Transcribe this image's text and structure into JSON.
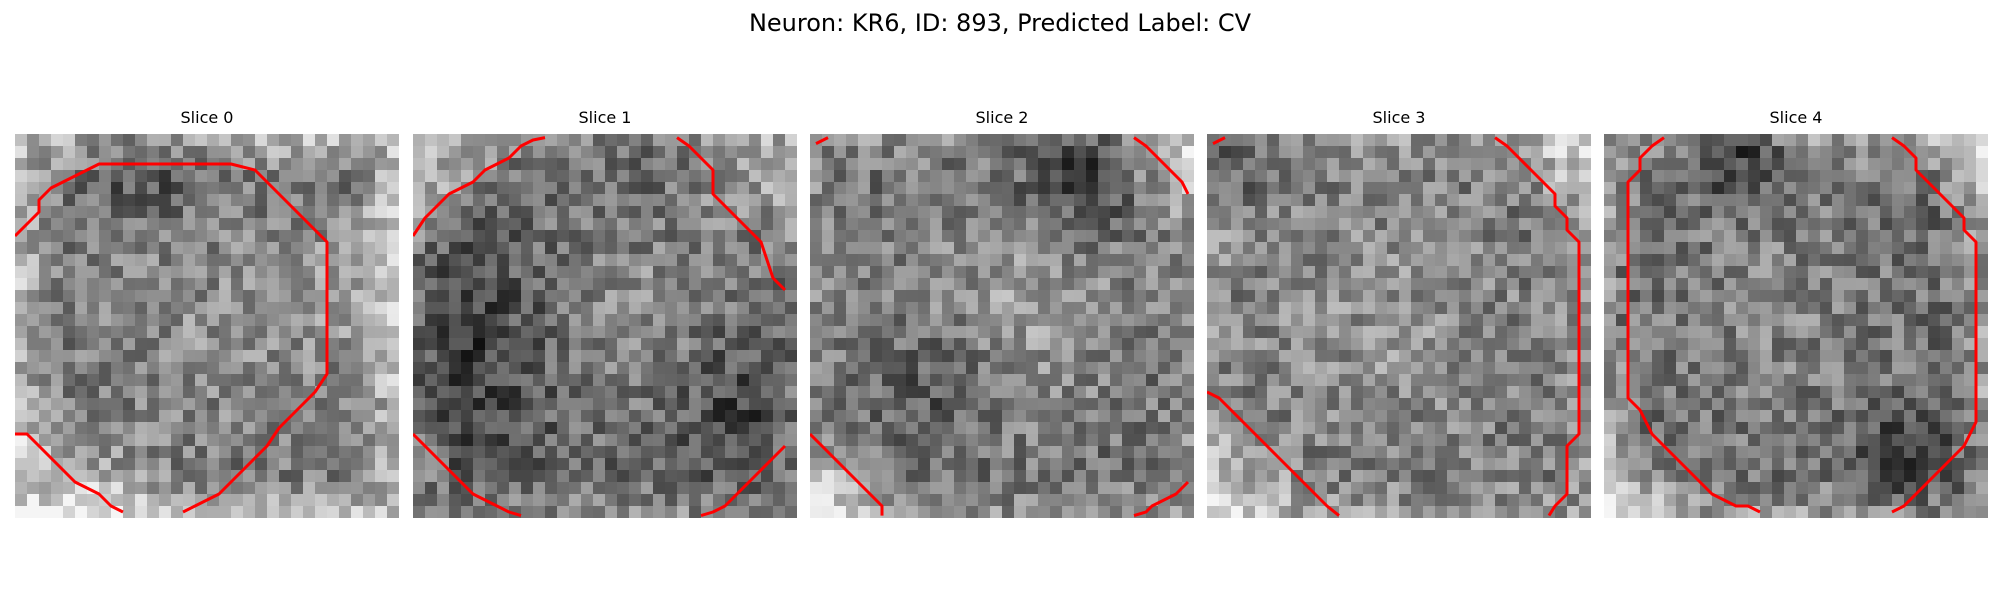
{
  "figure": {
    "title": "Neuron: KR6, ID: 893, Predicted Label: CV"
  },
  "colors": {
    "contour": "#ff0000",
    "background": "#ffffff"
  },
  "slices": [
    {
      "label": "Slice 0"
    },
    {
      "label": "Slice 1"
    },
    {
      "label": "Slice 2"
    },
    {
      "label": "Slice 3"
    },
    {
      "label": "Slice 4"
    }
  ]
}
